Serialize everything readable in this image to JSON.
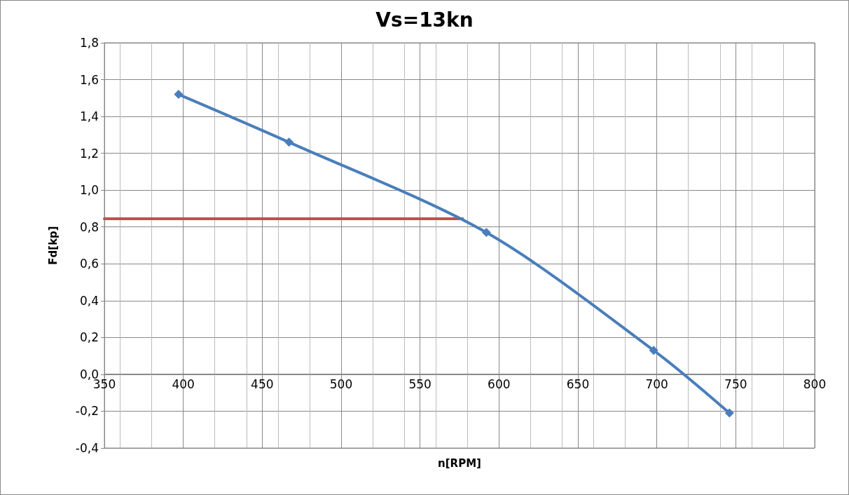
{
  "chart_data": {
    "type": "line",
    "title": "Vs=13kn",
    "xlabel": "n[RPM]",
    "ylabel": "Fd[kp]",
    "series": [
      {
        "color": "#4a7ebb",
        "x": [
          397,
          467,
          592,
          698,
          746
        ],
        "values": [
          1.52,
          1.26,
          0.77,
          0.13,
          -0.21
        ],
        "marker": "diamond"
      },
      {
        "color": "#c0504d",
        "x": [
          350,
          577
        ],
        "values": [
          0.845,
          0.845
        ],
        "marker": "none"
      }
    ],
    "xlim": [
      350,
      800
    ],
    "xticks": [
      350,
      400,
      450,
      500,
      550,
      600,
      650,
      700,
      750,
      800
    ],
    "ylim": [
      -0.4,
      1.8
    ],
    "yticks": [
      {
        "value": -0.4,
        "label": "-0,4"
      },
      {
        "value": -0.2,
        "label": "-0,2"
      },
      {
        "value": 0,
        "label": "0,0"
      },
      {
        "value": 0.2,
        "label": "0,2"
      },
      {
        "value": 0.4,
        "label": "0,4"
      },
      {
        "value": 0.6,
        "label": "0,6"
      },
      {
        "value": 0.8,
        "label": "0,8"
      },
      {
        "value": 1.0,
        "label": "1,0"
      },
      {
        "value": 1.2,
        "label": "1,2"
      },
      {
        "value": 1.4,
        "label": "1,4"
      },
      {
        "value": 1.6,
        "label": "1,6"
      },
      {
        "value": 1.8,
        "label": "1,8"
      }
    ],
    "grid": true,
    "line_style": "solid"
  }
}
